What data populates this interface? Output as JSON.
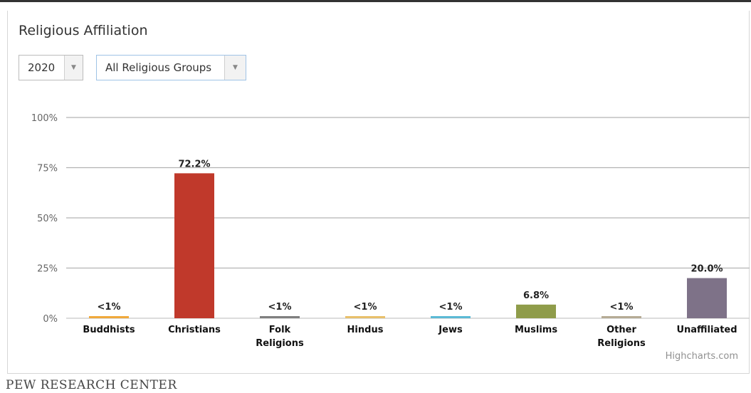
{
  "header": {
    "title": "Religious Affiliation"
  },
  "filters": {
    "year": "2020",
    "group": "All Religious Groups"
  },
  "credits": "Highcharts.com",
  "source": "PEW RESEARCH CENTER",
  "chart_data": {
    "type": "bar",
    "categories": [
      "Buddhists",
      "Christians",
      "Folk Religions",
      "Hindus",
      "Jews",
      "Muslims",
      "Other Religions",
      "Unaffiliated"
    ],
    "category_lines": [
      [
        "Buddhists"
      ],
      [
        "Christians"
      ],
      [
        "Folk",
        "Religions"
      ],
      [
        "Hindus"
      ],
      [
        "Jews"
      ],
      [
        "Muslims"
      ],
      [
        "Other",
        "Religions"
      ],
      [
        "Unaffiliated"
      ]
    ],
    "values": [
      0.5,
      72.2,
      0.5,
      0.5,
      0.5,
      6.8,
      0.5,
      20.0
    ],
    "data_labels": [
      "<1%",
      "72.2%",
      "<1%",
      "<1%",
      "<1%",
      "6.8%",
      "<1%",
      "20.0%"
    ],
    "colors": [
      "#f0a93b",
      "#c0392b",
      "#7f7f7f",
      "#e8c06a",
      "#5bbad5",
      "#8f9c4a",
      "#b5ab95",
      "#7e7288"
    ],
    "y_ticks": [
      "0%",
      "25%",
      "50%",
      "75%",
      "100%"
    ],
    "ylim": [
      0,
      100
    ],
    "grid": true,
    "legend": "none"
  }
}
